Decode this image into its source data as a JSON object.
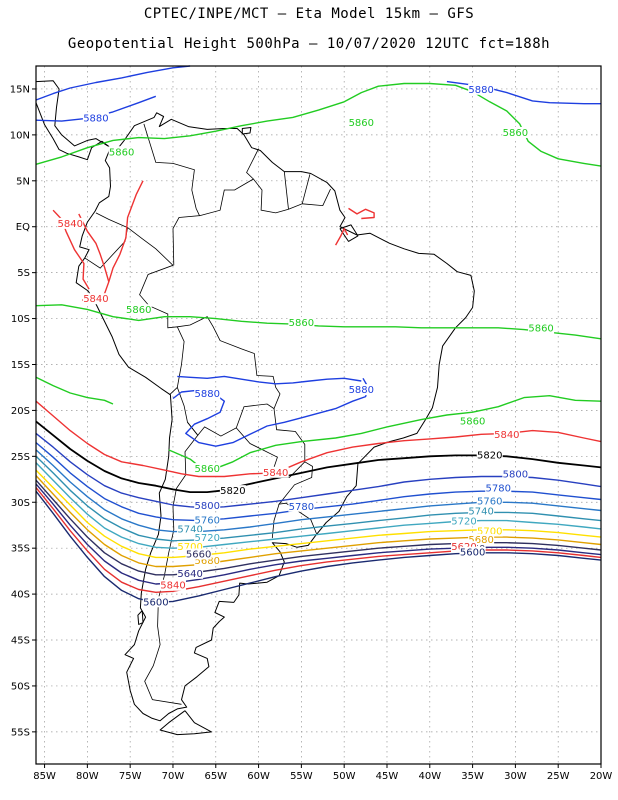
{
  "header": {
    "line1": "CPTEC/INPE/MCT –  Eta Model 15km – GFS",
    "line2": "Geopotential Height 500hPa – 10/07/2020 12UTC fct=188h"
  },
  "axes": {
    "lat_ticks": [
      "15N",
      "10N",
      "5N",
      "EQ",
      "5S",
      "10S",
      "15S",
      "20S",
      "25S",
      "30S",
      "35S",
      "40S",
      "45S",
      "50S",
      "55S"
    ],
    "lon_ticks": [
      "85W",
      "80W",
      "75W",
      "70W",
      "65W",
      "60W",
      "55W",
      "50W",
      "45W",
      "40W",
      "35W",
      "30W",
      "25W",
      "20W"
    ]
  },
  "map": {
    "lat_range": [
      17.5,
      -58.5
    ],
    "lon_range": [
      -86,
      -20
    ],
    "field": "Geopotential Height 500hPa"
  },
  "contours": [
    {
      "level": 5880,
      "color": "#1e3fe0",
      "labels": [
        {
          "text": "5880",
          "lon": -79,
          "lat": 11.7
        },
        {
          "text": "5880",
          "lon": -34,
          "lat": 14.8
        },
        {
          "text": "5880",
          "lon": -66,
          "lat": -18.3
        },
        {
          "text": "5880",
          "lon": -48,
          "lat": -17.9
        }
      ]
    },
    {
      "level": 5860,
      "color": "#22cc22",
      "labels": [
        {
          "text": "5860",
          "lon": -48,
          "lat": 11.2
        },
        {
          "text": "5860",
          "lon": -30,
          "lat": 10.1
        },
        {
          "text": "5860",
          "lon": -76,
          "lat": 8.0
        },
        {
          "text": "5860",
          "lon": -74,
          "lat": -9.2
        },
        {
          "text": "5860",
          "lon": -55,
          "lat": -10.6
        },
        {
          "text": "5860",
          "lon": -27,
          "lat": -11.2
        },
        {
          "text": "5860",
          "lon": -35,
          "lat": -21.3
        },
        {
          "text": "5860",
          "lon": -66,
          "lat": -26.5
        }
      ]
    },
    {
      "level": 5840,
      "color": "#ee3333",
      "labels": [
        {
          "text": "5840",
          "lon": -82,
          "lat": 0.2
        },
        {
          "text": "5840",
          "lon": -79,
          "lat": -8.0
        },
        {
          "text": "5840",
          "lon": -31,
          "lat": -22.8
        },
        {
          "text": "5840",
          "lon": -58,
          "lat": -26.9
        },
        {
          "text": "5840",
          "lon": -70,
          "lat": -39.2
        }
      ]
    },
    {
      "level": 5820,
      "color": "#000000",
      "labels": [
        {
          "text": "5820",
          "lon": -63,
          "lat": -28.9
        },
        {
          "text": "5820",
          "lon": -33,
          "lat": -25.0
        }
      ]
    },
    {
      "level": 5800,
      "color": "#2840c0",
      "labels": [
        {
          "text": "5800",
          "lon": -66,
          "lat": -30.5
        },
        {
          "text": "5800",
          "lon": -30,
          "lat": -27.1
        }
      ]
    },
    {
      "level": 5780,
      "color": "#2050d0",
      "labels": [
        {
          "text": "5780",
          "lon": -55,
          "lat": -30.6
        },
        {
          "text": "5780",
          "lon": -32,
          "lat": -28.6
        }
      ]
    },
    {
      "level": 5760,
      "color": "#2a78c8",
      "labels": [
        {
          "text": "5760",
          "lon": -66,
          "lat": -32.1
        },
        {
          "text": "5760",
          "lon": -33,
          "lat": -30.0
        }
      ]
    },
    {
      "level": 5740,
      "color": "#3090b0",
      "labels": [
        {
          "text": "5740",
          "lon": -68,
          "lat": -33.1
        },
        {
          "text": "5740",
          "lon": -34,
          "lat": -31.1
        }
      ]
    },
    {
      "level": 5720,
      "color": "#40a8c0",
      "labels": [
        {
          "text": "5720",
          "lon": -66,
          "lat": -34.0
        },
        {
          "text": "5720",
          "lon": -36,
          "lat": -32.2
        }
      ]
    },
    {
      "level": 5700,
      "color": "#ffe000",
      "labels": [
        {
          "text": "5700",
          "lon": -68,
          "lat": -35.0
        },
        {
          "text": "5700",
          "lon": -33,
          "lat": -33.3
        }
      ]
    },
    {
      "level": 5680,
      "color": "#e0a000",
      "labels": [
        {
          "text": "5680",
          "lon": -66,
          "lat": -36.5
        },
        {
          "text": "5680",
          "lon": -34,
          "lat": -34.2
        }
      ]
    },
    {
      "level": 5660,
      "color": "#303060",
      "labels": [
        {
          "text": "5660",
          "lon": -67,
          "lat": -35.8
        },
        {
          "text": "5660",
          "lon": -35,
          "lat": -35.2
        }
      ]
    },
    {
      "level": 5640,
      "color": "#2a2a80",
      "labels": [
        {
          "text": "5640",
          "lon": -68,
          "lat": -37.9
        }
      ]
    },
    {
      "level": 5620,
      "color": "#e63030",
      "labels": [
        {
          "text": "5620",
          "lon": -36,
          "lat": -35.0
        }
      ]
    },
    {
      "level": 5600,
      "color": "#1a2a70",
      "labels": [
        {
          "text": "5600",
          "lon": -72,
          "lat": -41.0
        },
        {
          "text": "5600",
          "lon": -35,
          "lat": -35.6
        }
      ]
    }
  ]
}
